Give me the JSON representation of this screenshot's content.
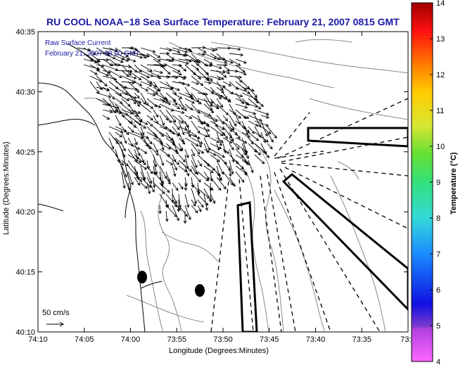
{
  "title": "RU COOL  NOAA−18  Sea Surface Temperature:  February 21, 2007 0815 GMT",
  "overlay": {
    "label": "Raw Surface Current",
    "timestamp": "February 21, 2007 08:00 GMT"
  },
  "scale_label": "50 cm/s",
  "axes": {
    "xlabel": "Longitude (Degrees:Minutes)",
    "ylabel": "Latitude (Degrees:Minutes)",
    "x_ticks": [
      "74:10",
      "74:05",
      "74:00",
      "73:55",
      "73:50",
      "73:45",
      "73:40",
      "73:35",
      "73:3"
    ],
    "y_ticks": [
      "40:35",
      "40:30",
      "40:25",
      "40:20",
      "40:15",
      "40:10"
    ]
  },
  "colorbar": {
    "label": "Temperature (°C)",
    "ticks": [
      "14",
      "13",
      "12",
      "11",
      "10",
      "9",
      "8",
      "7",
      "6",
      "5",
      "4"
    ],
    "min": 4,
    "max": 14
  },
  "colors": {
    "title": "#1a1aa6",
    "coast": "#000000",
    "bathymetry": "#888888"
  }
}
